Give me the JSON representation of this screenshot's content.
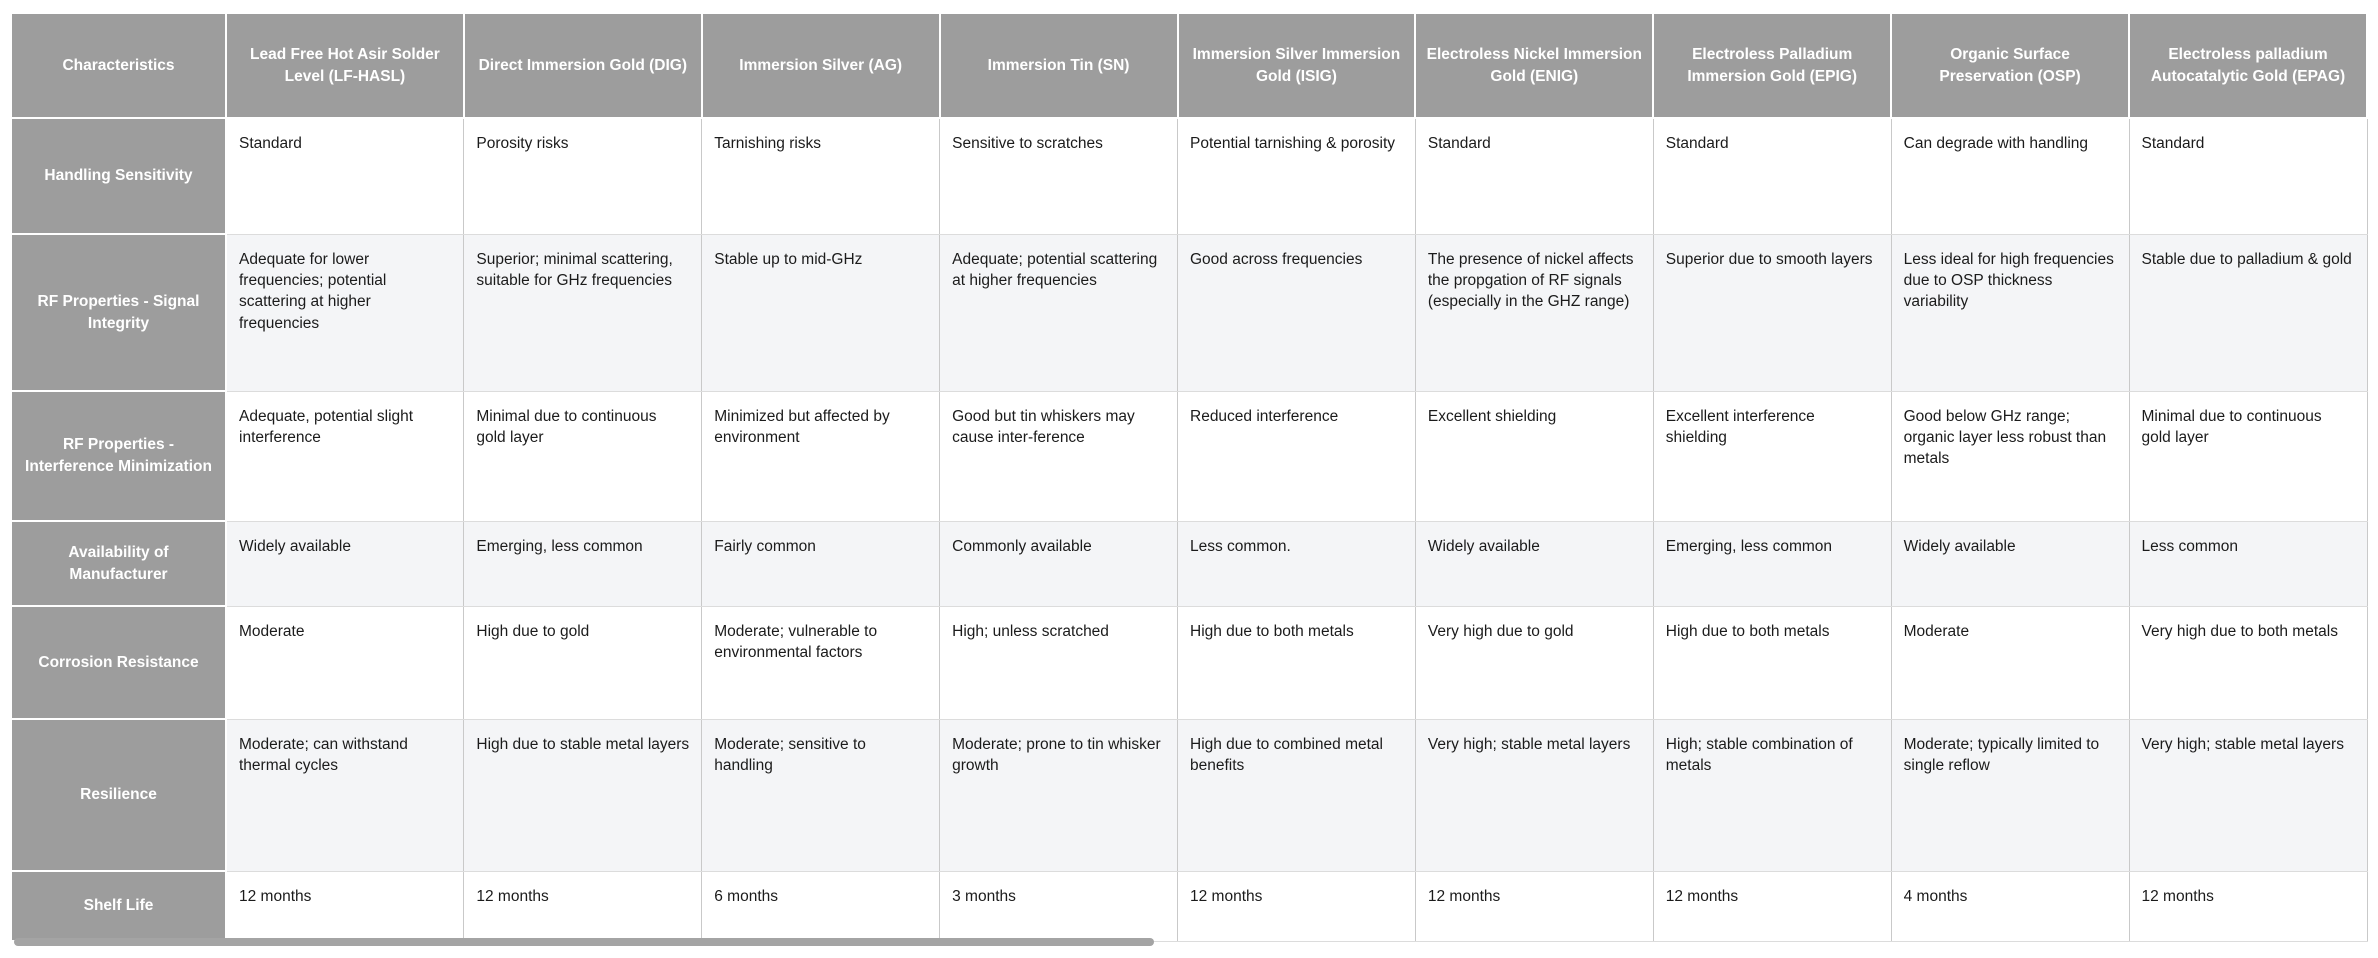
{
  "colors": {
    "header_bg": "#9d9d9d",
    "header_text": "#ffffff",
    "row_alt_bg": "#f4f5f7",
    "body_text": "#1b1b1b",
    "grid_line": "#c9c9c9"
  },
  "table": {
    "corner_header": "Characteristics",
    "columns": [
      "Lead Free Hot Asir Solder Level (LF-HASL)",
      "Direct Immersion Gold (DIG)",
      "Immersion Silver (AG)",
      "Immersion Tin (SN)",
      "Immersion Silver Immersion Gold (ISIG)",
      "Electroless Nickel Immersion Gold (ENIG)",
      "Electroless Palladium Immersion Gold (EPIG)",
      "Organic Surface Preservation (OSP)",
      "Electroless palladium Autocatalytic Gold (EPAG)"
    ],
    "rows": [
      {
        "label": "Handling Sensitivity",
        "cells": [
          "Standard",
          "Porosity risks",
          "Tarnishing risks",
          "Sensitive to scratches",
          "Potential tarnishing & porosity",
          "Standard",
          "Standard",
          "Can degrade with handling",
          "Standard"
        ]
      },
      {
        "label": "RF Properties - Signal Integrity",
        "cells": [
          "Adequate for lower frequencies; potential scattering at higher frequencies",
          "Superior; minimal scattering, suitable for GHz frequencies",
          "Stable up to mid-GHz",
          "Adequate; potential scattering at higher frequencies",
          "Good across frequencies",
          "The presence of nickel affects the propgation of RF signals (especially in the GHZ range)",
          "Superior due to smooth layers",
          "Less ideal for high frequencies due to OSP thickness variability",
          "Stable due to palladium & gold"
        ]
      },
      {
        "label": "RF Properties - Interference Minimization",
        "cells": [
          "Adequate, potential slight interference",
          "Minimal due to continuous gold layer",
          "Minimized but affected by environment",
          "Good but tin whiskers may cause inter-ference",
          "Reduced interference",
          "Excellent shielding",
          "Excellent interference shielding",
          "Good below GHz range; organic layer less robust than metals",
          "Minimal due to continuous gold layer"
        ]
      },
      {
        "label": "Availability of Manufacturer",
        "cells": [
          "Widely available",
          "Emerging, less common",
          "Fairly common",
          "Commonly available",
          "Less common.",
          "Widely available",
          "Emerging, less common",
          "Widely available",
          "Less common"
        ]
      },
      {
        "label": "Corrosion Resistance",
        "cells": [
          "Moderate",
          "High due to gold",
          "Moderate; vulnerable to environmental factors",
          "High; unless scratched",
          "High due to both metals",
          "Very high due to gold",
          "High due to both metals",
          "Moderate",
          "Very high due to both metals"
        ]
      },
      {
        "label": "Resilience",
        "cells": [
          "Moderate; can withstand thermal cycles",
          "High due to stable metal layers",
          "Moderate; sensitive to handling",
          "Moderate; prone to tin whisker growth",
          "High due to combined metal benefits",
          "Very high; stable metal layers",
          "High; stable combination of metals",
          "Moderate; typically limited to single reflow",
          "Very high; stable metal layers"
        ]
      },
      {
        "label": "Shelf Life",
        "cells": [
          "12 months",
          "12 months",
          "6 months",
          "3 months",
          "12 months",
          "12 months",
          "12 months",
          "4 months",
          "12 months"
        ]
      }
    ]
  }
}
